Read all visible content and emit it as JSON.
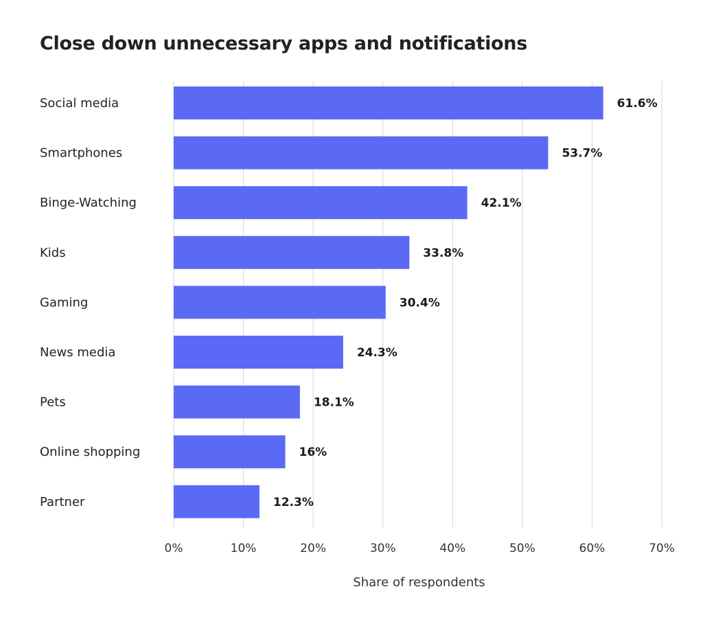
{
  "chart_data": {
    "type": "bar",
    "orientation": "horizontal",
    "title": "Close down unnecessary apps and notifications",
    "xlabel": "Share of respondents",
    "ylabel": "",
    "categories": [
      "Social media",
      "Smartphones",
      "Binge-Watching",
      "Kids",
      "Gaming",
      "News media",
      "Pets",
      "Online shopping",
      "Partner"
    ],
    "values": [
      61.6,
      53.7,
      42.1,
      33.8,
      30.4,
      24.3,
      18.1,
      16,
      12.3
    ],
    "value_labels": [
      "61.6%",
      "53.7%",
      "42.1%",
      "33.8%",
      "30.4%",
      "24.3%",
      "18.1%",
      "16%",
      "12.3%"
    ],
    "xlim": [
      0,
      70
    ],
    "x_ticks": [
      0,
      10,
      20,
      30,
      40,
      50,
      60,
      70
    ],
    "x_tick_labels": [
      "0%",
      "10%",
      "20%",
      "30%",
      "40%",
      "50%",
      "60%",
      "70%"
    ],
    "grid": "vertical",
    "legend": "none",
    "bar_color": "#5b6af5"
  }
}
